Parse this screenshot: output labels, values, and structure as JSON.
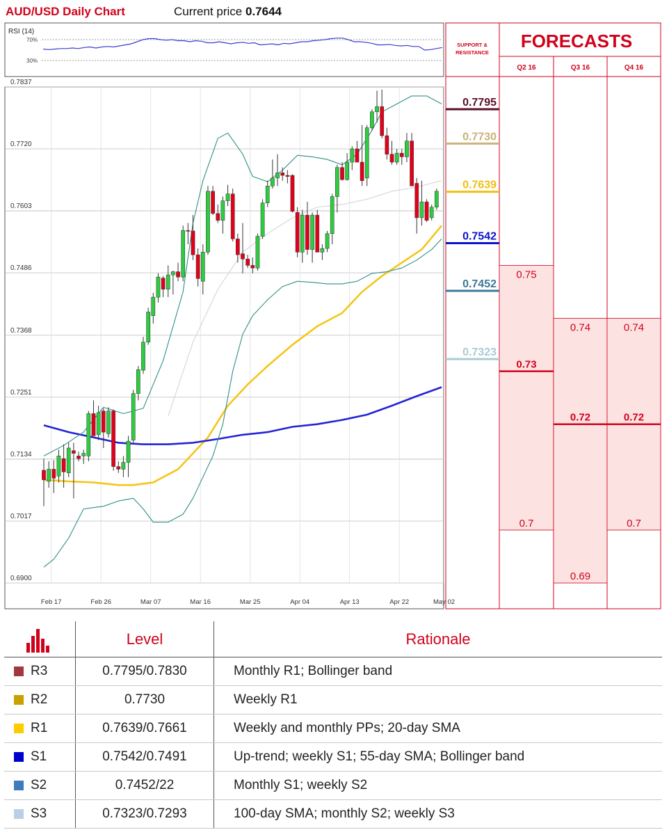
{
  "header": {
    "title": "AUD/USD Daily Chart",
    "price_label": "Current price",
    "price_value": "0.7644"
  },
  "rsi": {
    "label": "RSI (14)",
    "upper_label": "70%",
    "lower_label": "30%",
    "values": [
      52,
      51,
      52,
      53,
      53,
      54,
      53,
      55,
      56,
      54,
      56,
      57,
      56,
      58,
      60,
      62,
      66,
      70,
      72,
      72,
      70,
      69,
      70,
      68,
      68,
      66,
      68,
      67,
      64,
      64,
      66,
      64,
      62,
      64,
      65,
      63,
      64,
      60,
      61,
      62,
      60,
      63,
      62,
      64,
      66,
      66,
      68,
      69,
      70,
      72,
      73,
      73,
      70,
      66,
      66,
      65,
      63,
      60,
      60,
      61,
      59,
      58,
      59,
      57,
      57,
      50,
      51,
      53,
      55
    ]
  },
  "chart_data": {
    "type": "candlestick",
    "title": "AUD/USD Daily Chart",
    "ylim": [
      0.69,
      0.7837
    ],
    "y_ticks": [
      "0.7837",
      "0.7720",
      "0.7603",
      "0.7486",
      "0.7368",
      "0.7251",
      "0.7134",
      "0.7017",
      "0.6900"
    ],
    "x_ticks": [
      "Feb 17",
      "Feb 26",
      "Mar 07",
      "Mar 16",
      "Mar 25",
      "Apr 04",
      "Apr 13",
      "Apr 22",
      "May 02"
    ],
    "x_tick_index": [
      1.5,
      11.5,
      21.5,
      31.5,
      41.5,
      51.5,
      61.5,
      71.5,
      80.5
    ],
    "candles": [
      [
        0.7113,
        0.7135,
        0.7045,
        0.7095
      ],
      [
        0.7092,
        0.713,
        0.708,
        0.7115
      ],
      [
        0.7115,
        0.7132,
        0.707,
        0.7098
      ],
      [
        0.7102,
        0.7152,
        0.709,
        0.714
      ],
      [
        0.7135,
        0.7162,
        0.708,
        0.711
      ],
      [
        0.7108,
        0.7165,
        0.71,
        0.7155
      ],
      [
        0.715,
        0.7165,
        0.706,
        0.7145
      ],
      [
        0.714,
        0.7148,
        0.713,
        0.7135
      ],
      [
        0.714,
        0.7152,
        0.7125,
        0.7145
      ],
      [
        0.714,
        0.7225,
        0.713,
        0.722
      ],
      [
        0.722,
        0.7245,
        0.718,
        0.7178
      ],
      [
        0.718,
        0.7235,
        0.717,
        0.7222
      ],
      [
        0.7225,
        0.723,
        0.7155,
        0.7185
      ],
      [
        0.7182,
        0.7232,
        0.7175,
        0.7225
      ],
      [
        0.7225,
        0.7228,
        0.7112,
        0.712
      ],
      [
        0.712,
        0.713,
        0.7108,
        0.7115
      ],
      [
        0.7115,
        0.714,
        0.71,
        0.7128
      ],
      [
        0.7128,
        0.7178,
        0.71,
        0.7168
      ],
      [
        0.717,
        0.7265,
        0.7165,
        0.7258
      ],
      [
        0.7258,
        0.731,
        0.7245,
        0.7303
      ],
      [
        0.7302,
        0.7365,
        0.7295,
        0.7355
      ],
      [
        0.7355,
        0.742,
        0.735,
        0.7412
      ],
      [
        0.7405,
        0.7448,
        0.739,
        0.744
      ],
      [
        0.744,
        0.7485,
        0.743,
        0.7478
      ],
      [
        0.7476,
        0.748,
        0.744,
        0.7455
      ],
      [
        0.7455,
        0.75,
        0.744,
        0.7482
      ],
      [
        0.7482,
        0.749,
        0.7445,
        0.7488
      ],
      [
        0.7488,
        0.7505,
        0.747,
        0.7478
      ],
      [
        0.7478,
        0.7575,
        0.747,
        0.7566
      ],
      [
        0.7566,
        0.758,
        0.754,
        0.7565
      ],
      [
        0.7565,
        0.7595,
        0.751,
        0.752
      ],
      [
        0.752,
        0.7532,
        0.746,
        0.7475
      ],
      [
        0.747,
        0.754,
        0.7445,
        0.7525
      ],
      [
        0.7525,
        0.765,
        0.752,
        0.764
      ],
      [
        0.764,
        0.765,
        0.7595,
        0.7598
      ],
      [
        0.7598,
        0.7615,
        0.758,
        0.7585
      ],
      [
        0.7585,
        0.763,
        0.756,
        0.7622
      ],
      [
        0.7622,
        0.7652,
        0.7612,
        0.7635
      ],
      [
        0.7635,
        0.7645,
        0.7545,
        0.755
      ],
      [
        0.755,
        0.756,
        0.7505,
        0.752
      ],
      [
        0.7522,
        0.758,
        0.7485,
        0.7512
      ],
      [
        0.7512,
        0.752,
        0.7495,
        0.75
      ],
      [
        0.75,
        0.7515,
        0.7485,
        0.7495
      ],
      [
        0.7495,
        0.756,
        0.749,
        0.7555
      ],
      [
        0.7555,
        0.7625,
        0.755,
        0.7618
      ],
      [
        0.7618,
        0.766,
        0.761,
        0.765
      ],
      [
        0.765,
        0.77,
        0.7645,
        0.7665
      ],
      [
        0.7665,
        0.771,
        0.765,
        0.7675
      ],
      [
        0.7675,
        0.7685,
        0.766,
        0.767
      ],
      [
        0.767,
        0.768,
        0.7655,
        0.7668
      ],
      [
        0.767,
        0.7672,
        0.76,
        0.7602
      ],
      [
        0.76,
        0.761,
        0.7515,
        0.7525
      ],
      [
        0.7525,
        0.7605,
        0.7505,
        0.7595
      ],
      [
        0.7595,
        0.762,
        0.752,
        0.753
      ],
      [
        0.753,
        0.76,
        0.7505,
        0.7595
      ],
      [
        0.7595,
        0.7605,
        0.7525,
        0.7525
      ],
      [
        0.7525,
        0.754,
        0.751,
        0.7532
      ],
      [
        0.7532,
        0.7565,
        0.7525,
        0.756
      ],
      [
        0.756,
        0.7635,
        0.754,
        0.763
      ],
      [
        0.763,
        0.769,
        0.76,
        0.7685
      ],
      [
        0.7685,
        0.7695,
        0.766,
        0.7662
      ],
      [
        0.7662,
        0.7712,
        0.766,
        0.7695
      ],
      [
        0.7695,
        0.7725,
        0.768,
        0.772
      ],
      [
        0.772,
        0.7735,
        0.77,
        0.7695
      ],
      [
        0.7695,
        0.7765,
        0.765,
        0.766
      ],
      [
        0.7665,
        0.7765,
        0.765,
        0.776
      ],
      [
        0.776,
        0.7795,
        0.7755,
        0.779
      ],
      [
        0.779,
        0.783,
        0.777,
        0.78
      ],
      [
        0.78,
        0.7832,
        0.774,
        0.7745
      ],
      [
        0.7745,
        0.776,
        0.77,
        0.771
      ],
      [
        0.771,
        0.7735,
        0.769,
        0.7695
      ],
      [
        0.7695,
        0.772,
        0.769,
        0.7712
      ],
      [
        0.7712,
        0.772,
        0.769,
        0.7705
      ],
      [
        0.7705,
        0.775,
        0.7695,
        0.7735
      ],
      [
        0.7735,
        0.775,
        0.765,
        0.765
      ],
      [
        0.7655,
        0.7665,
        0.756,
        0.759
      ],
      [
        0.759,
        0.766,
        0.7575,
        0.762
      ],
      [
        0.762,
        0.7625,
        0.7582,
        0.7585
      ],
      [
        0.759,
        0.7615,
        0.7585,
        0.761
      ],
      [
        0.761,
        0.7645,
        0.7605,
        0.764
      ]
    ],
    "series": [
      {
        "name": "sma20",
        "color": "#d8d8d8",
        "x": [
          25,
          30,
          35,
          40,
          45,
          50,
          55,
          60,
          65,
          70,
          75,
          80
        ],
        "values": [
          0.7215,
          0.7355,
          0.7455,
          0.7525,
          0.756,
          0.759,
          0.761,
          0.7615,
          0.7625,
          0.764,
          0.7648,
          0.766
        ]
      },
      {
        "name": "sma55",
        "color": "#f5c518",
        "x": [
          0,
          5,
          10,
          15,
          18,
          22,
          27,
          33,
          37,
          41,
          45,
          50,
          55,
          60,
          64,
          68,
          72,
          76,
          80
        ],
        "values": [
          0.7095,
          0.7092,
          0.709,
          0.7085,
          0.7085,
          0.709,
          0.7115,
          0.7175,
          0.7235,
          0.7275,
          0.731,
          0.735,
          0.7385,
          0.741,
          0.745,
          0.748,
          0.7505,
          0.753,
          0.7575
        ]
      },
      {
        "name": "sma100",
        "color": "#2323d6",
        "x": [
          0,
          5,
          10,
          15,
          20,
          25,
          30,
          35,
          40,
          45,
          50,
          55,
          60,
          65,
          70,
          75,
          80
        ],
        "values": [
          0.7198,
          0.7185,
          0.7175,
          0.7165,
          0.7162,
          0.7162,
          0.7165,
          0.7172,
          0.718,
          0.7185,
          0.7195,
          0.72,
          0.7208,
          0.7218,
          0.7235,
          0.7253,
          0.727
        ]
      },
      {
        "name": "bb_upper",
        "color": "#2e8f86",
        "x": [
          0,
          4,
          8,
          12,
          16,
          20,
          24,
          28,
          30,
          32,
          35,
          37,
          40,
          42,
          45,
          48,
          51,
          54,
          57,
          60,
          63,
          66,
          68,
          71,
          74,
          77,
          80
        ],
        "values": [
          0.714,
          0.716,
          0.7185,
          0.7232,
          0.722,
          0.723,
          0.732,
          0.745,
          0.758,
          0.766,
          0.774,
          0.775,
          0.771,
          0.7668,
          0.7658,
          0.768,
          0.7708,
          0.7705,
          0.77,
          0.769,
          0.771,
          0.7755,
          0.779,
          0.7805,
          0.782,
          0.782,
          0.7805
        ]
      },
      {
        "name": "bb_lower",
        "color": "#2e8f86",
        "x": [
          0,
          2,
          5,
          8,
          12,
          15,
          18,
          20,
          22,
          25,
          28,
          30,
          32,
          34,
          36,
          38,
          40,
          42,
          45,
          48,
          51,
          54,
          57,
          60,
          63,
          66,
          69,
          72,
          75,
          78,
          80
        ],
        "values": [
          0.693,
          0.6945,
          0.6985,
          0.704,
          0.7045,
          0.7055,
          0.706,
          0.704,
          0.7015,
          0.7015,
          0.703,
          0.706,
          0.71,
          0.714,
          0.72,
          0.73,
          0.737,
          0.7405,
          0.7435,
          0.746,
          0.747,
          0.7468,
          0.7465,
          0.7465,
          0.747,
          0.7485,
          0.7488,
          0.7495,
          0.751,
          0.753,
          0.755
        ]
      }
    ]
  },
  "levels_panel": {
    "header": "SUPPORT & RESISTANCE",
    "items": [
      {
        "label": "0.7795",
        "value": 0.7795,
        "color": "#5a0f2b"
      },
      {
        "label": "0.7730",
        "value": 0.773,
        "color": "#c9b27a"
      },
      {
        "label": "0.7639",
        "value": 0.7639,
        "color": "#f0bf10"
      },
      {
        "label": "0.7542",
        "value": 0.7542,
        "color": "#0b14c8"
      },
      {
        "label": "0.7452",
        "value": 0.7452,
        "color": "#3d7896"
      },
      {
        "label": "0.7323",
        "value": 0.7323,
        "color": "#aacbd4"
      }
    ]
  },
  "forecasts": {
    "title": "FORECASTS",
    "columns": [
      {
        "label": "Q2 16",
        "high": "0.75",
        "high_v": 0.75,
        "mid": "0.73",
        "mid_v": 0.73,
        "low": "0.7",
        "low_v": 0.7
      },
      {
        "label": "Q3 16",
        "high": "0.74",
        "high_v": 0.74,
        "mid": "0.72",
        "mid_v": 0.72,
        "low": "0.69",
        "low_v": 0.69
      },
      {
        "label": "Q4 16",
        "high": "0.74",
        "high_v": 0.74,
        "mid": "0.72",
        "mid_v": 0.72,
        "low": "0.7",
        "low_v": 0.7
      }
    ]
  },
  "table": {
    "headers": {
      "level": "Level",
      "rationale": "Rationale"
    },
    "rows": [
      {
        "name": "R3",
        "color": "#a0393d",
        "level": "0.7795/0.7830",
        "rationale": "Monthly R1; Bollinger band"
      },
      {
        "name": "R2",
        "color": "#c8a000",
        "level": "0.7730",
        "rationale": "Weekly R1"
      },
      {
        "name": "R1",
        "color": "#ffcc00",
        "level": "0.7639/0.7661",
        "rationale": "Weekly and monthly PPs; 20-day SMA"
      },
      {
        "name": "S1",
        "color": "#0000cc",
        "level": "0.7542/0.7491",
        "rationale": "Up-trend; weekly S1; 55-day SMA; Bollinger band"
      },
      {
        "name": "S2",
        "color": "#3e7bbd",
        "level": "0.7452/22",
        "rationale": "Monthly S1; weekly S2"
      },
      {
        "name": "S3",
        "color": "#b8cfe6",
        "level": "0.7323/0.7293",
        "rationale": "100-day SMA; monthly S2; weekly S3"
      }
    ]
  }
}
